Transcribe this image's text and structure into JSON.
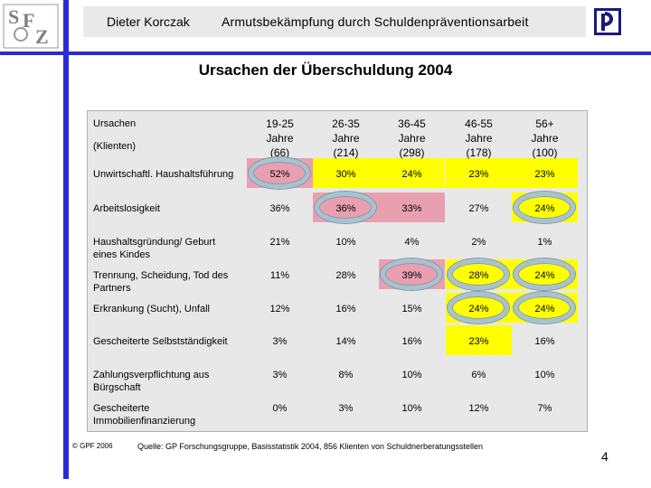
{
  "header": {
    "author": "Dieter Korczak",
    "title": "Armutsbekämpfung durch Schuldenpräventionsarbeit",
    "logo_left_text": "SFZ",
    "logo_right_text": "P"
  },
  "slide_title": "Ursachen der Überschuldung 2004",
  "table": {
    "label_header_line1": "Ursachen",
    "label_header_line2": "(Klienten)",
    "columns": [
      {
        "age": "19-25",
        "unit": "Jahre",
        "n": "(66)"
      },
      {
        "age": "26-35",
        "unit": "Jahre",
        "n": "(214)"
      },
      {
        "age": "36-45",
        "unit": "Jahre",
        "n": "(298)"
      },
      {
        "age": "46-55",
        "unit": "Jahre",
        "n": "(178)"
      },
      {
        "age": "56+",
        "unit": "Jahre",
        "n": "(100)"
      }
    ],
    "rows": [
      {
        "label": "Unwirtschaftl. Haushaltsführung",
        "values": [
          "52%",
          "30%",
          "24%",
          "23%",
          "23%"
        ]
      },
      {
        "label": "Arbeitslosigkeit",
        "values": [
          "36%",
          "36%",
          "33%",
          "27%",
          "24%"
        ]
      },
      {
        "label": "Haushaltsgründung/ Geburt eines Kindes",
        "values": [
          "21%",
          "10%",
          "4%",
          "2%",
          "1%"
        ]
      },
      {
        "label": "Trennung, Scheidung, Tod des Partners",
        "values": [
          "11%",
          "28%",
          "39%",
          "28%",
          "24%"
        ]
      },
      {
        "label": "Erkrankung (Sucht), Unfall",
        "values": [
          "12%",
          "16%",
          "15%",
          "24%",
          "24%"
        ]
      },
      {
        "label": "Gescheiterte Selbstständigkeit",
        "values": [
          "3%",
          "14%",
          "16%",
          "23%",
          "16%"
        ]
      },
      {
        "label": "Zahlungsverpflichtung aus Bürgschaft",
        "values": [
          "3%",
          "8%",
          "10%",
          "6%",
          "10%"
        ]
      },
      {
        "label": "Gescheiterte Immobilienfinanzierung",
        "values": [
          "0%",
          "3%",
          "10%",
          "12%",
          "7%"
        ]
      }
    ]
  },
  "highlight_colors": {
    "pink": "#e8a0b0",
    "yellow": "#ffff00",
    "ring": "#a9c2cf"
  },
  "footer": {
    "copyright": "© GPF 2006",
    "source": "Quelle: GP Forschungsgruppe, Basisstatistik 2004, 856 Klienten von Schuldnerberatungsstellen",
    "page": "4"
  }
}
